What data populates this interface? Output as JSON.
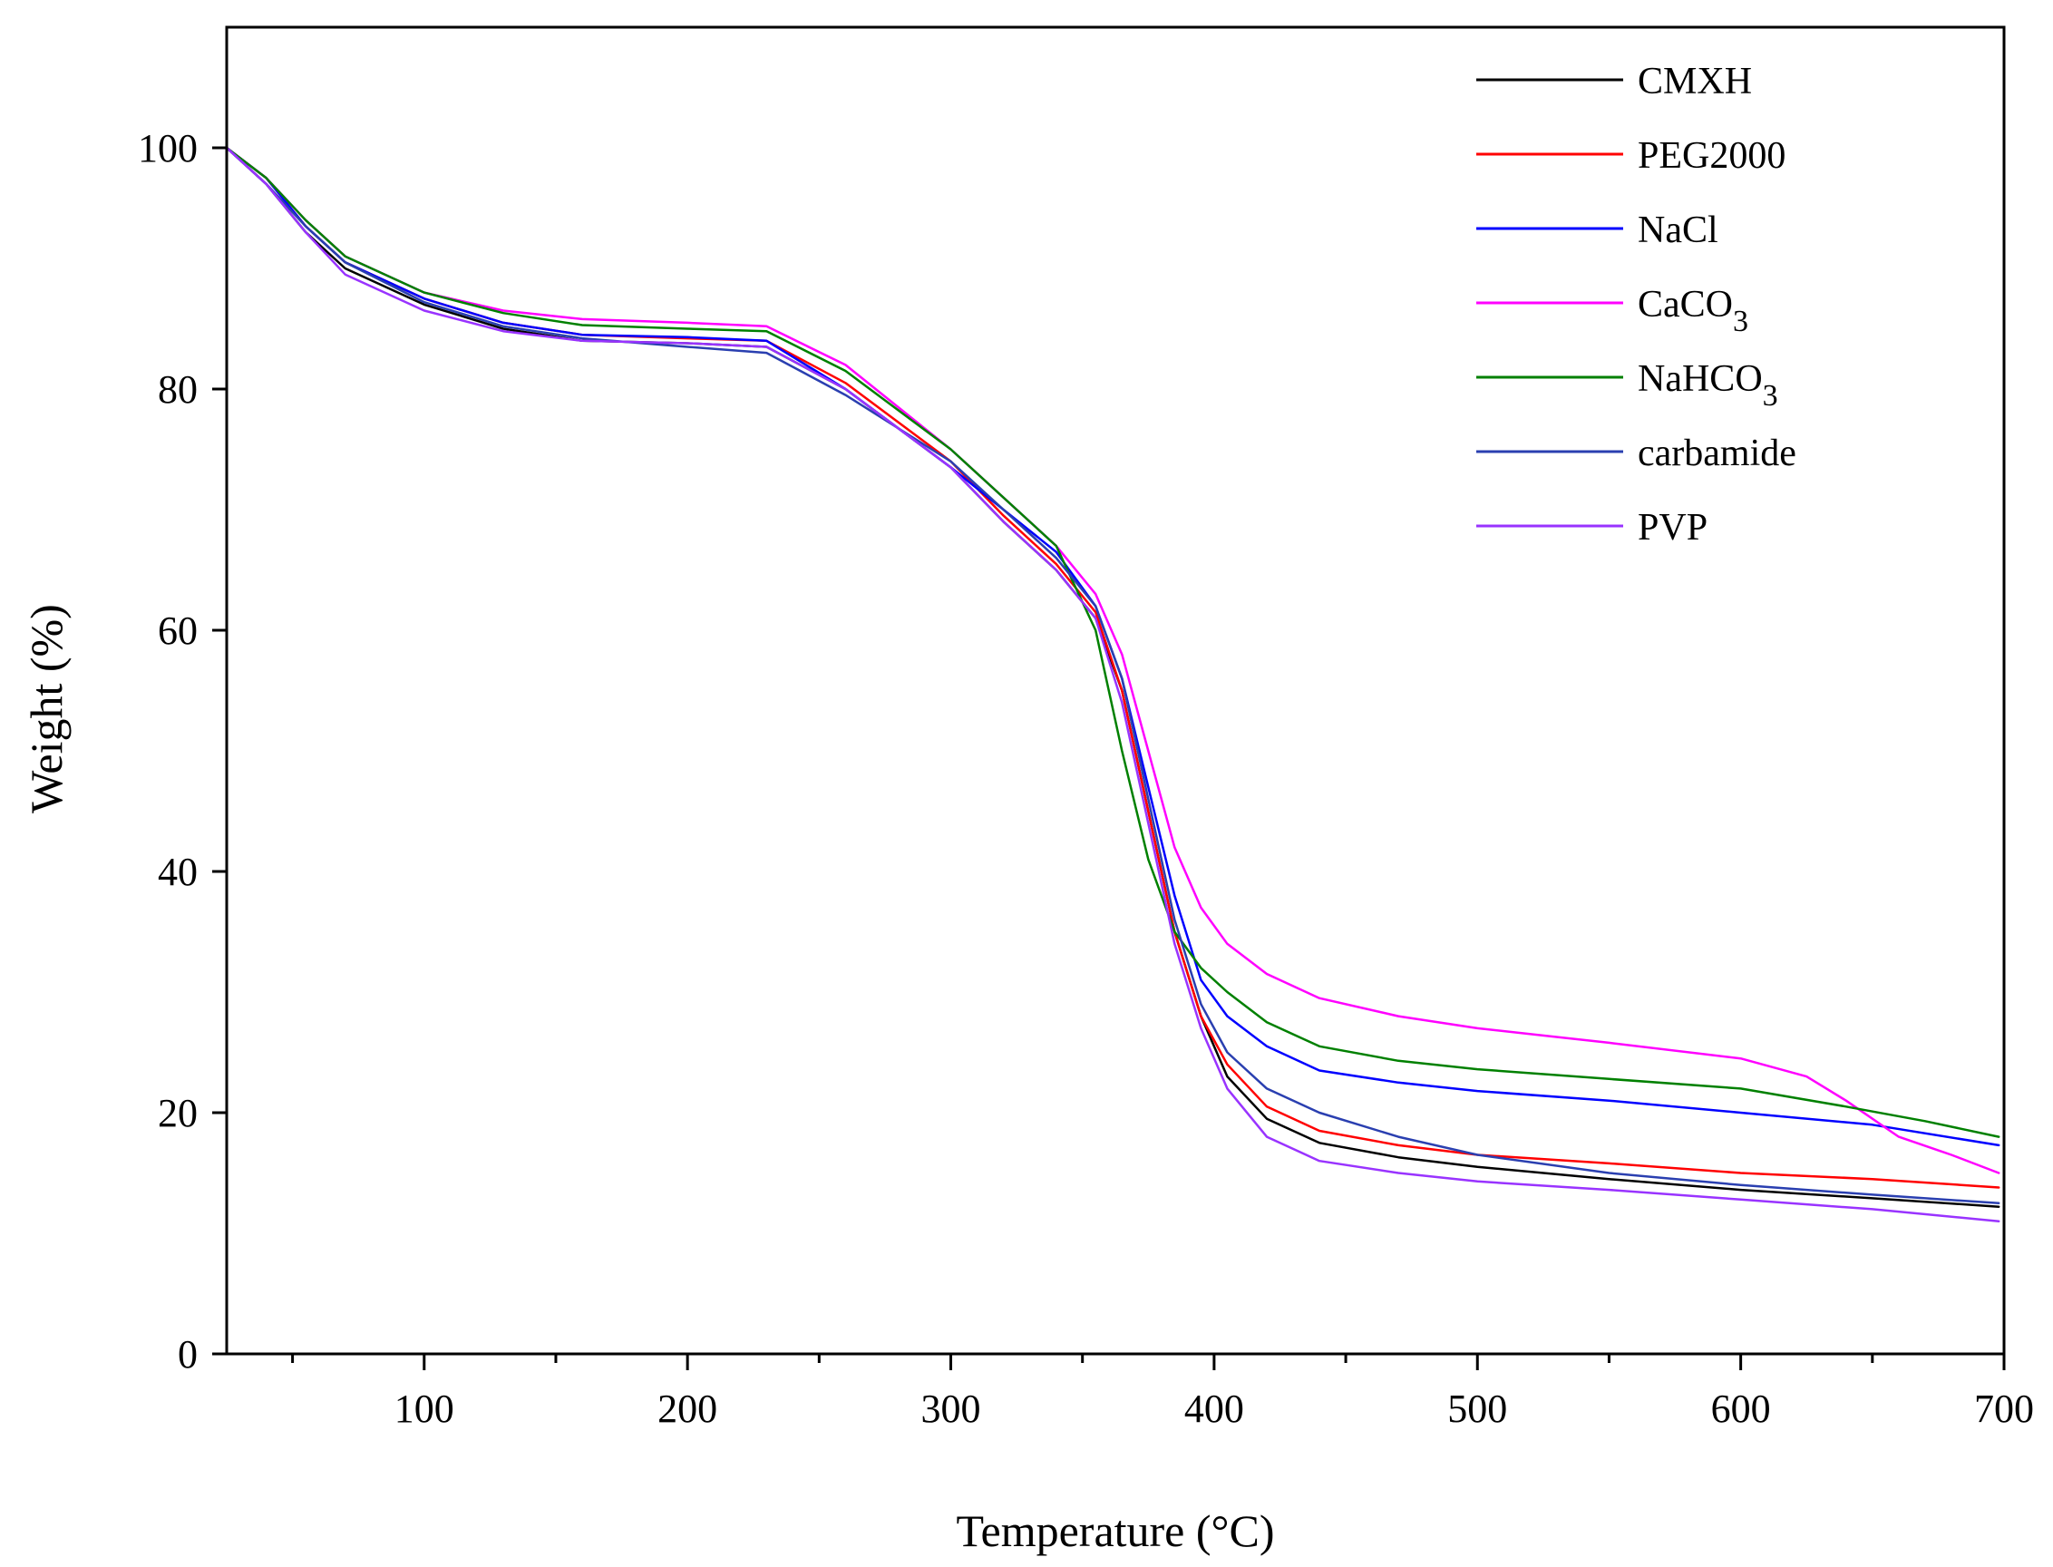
{
  "chart_data": {
    "type": "line",
    "title": "",
    "xlabel": "Temperature (°C)",
    "ylabel": "Weight (%)",
    "xlim": [
      25,
      700
    ],
    "ylim": [
      0,
      110
    ],
    "x_ticks": [
      100,
      200,
      300,
      400,
      500,
      600,
      700
    ],
    "x_minor_ticks": [
      50,
      150,
      250,
      350,
      450,
      550,
      650
    ],
    "y_ticks": [
      0,
      20,
      40,
      60,
      80,
      100
    ],
    "legend_position": "top-right",
    "grid": false,
    "series": [
      {
        "name": "CMXH",
        "name_main": "CMXH",
        "name_sub": "",
        "color": "#000000",
        "points": [
          [
            25,
            100
          ],
          [
            40,
            97
          ],
          [
            55,
            93
          ],
          [
            70,
            90
          ],
          [
            100,
            87
          ],
          [
            130,
            85
          ],
          [
            160,
            84
          ],
          [
            200,
            83.8
          ],
          [
            230,
            83.5
          ],
          [
            260,
            80
          ],
          [
            300,
            73.5
          ],
          [
            320,
            69
          ],
          [
            340,
            65
          ],
          [
            355,
            61
          ],
          [
            365,
            55
          ],
          [
            375,
            45
          ],
          [
            385,
            35
          ],
          [
            395,
            28
          ],
          [
            405,
            23
          ],
          [
            420,
            19.5
          ],
          [
            440,
            17.5
          ],
          [
            470,
            16.3
          ],
          [
            500,
            15.5
          ],
          [
            550,
            14.5
          ],
          [
            600,
            13.6
          ],
          [
            650,
            12.9
          ],
          [
            698,
            12.2
          ]
        ]
      },
      {
        "name": "PEG2000",
        "name_main": "PEG2000",
        "name_sub": "",
        "color": "#ff0000",
        "points": [
          [
            25,
            100
          ],
          [
            40,
            97.5
          ],
          [
            55,
            93.5
          ],
          [
            70,
            90.5
          ],
          [
            100,
            87.5
          ],
          [
            130,
            85.5
          ],
          [
            160,
            84.5
          ],
          [
            200,
            84.2
          ],
          [
            230,
            84
          ],
          [
            260,
            80.5
          ],
          [
            300,
            74
          ],
          [
            320,
            69.5
          ],
          [
            340,
            65.5
          ],
          [
            355,
            61.5
          ],
          [
            365,
            55
          ],
          [
            375,
            45
          ],
          [
            385,
            35
          ],
          [
            395,
            28
          ],
          [
            405,
            24
          ],
          [
            420,
            20.5
          ],
          [
            440,
            18.5
          ],
          [
            470,
            17.3
          ],
          [
            500,
            16.5
          ],
          [
            550,
            15.8
          ],
          [
            600,
            15
          ],
          [
            650,
            14.5
          ],
          [
            698,
            13.8
          ]
        ]
      },
      {
        "name": "NaCl",
        "name_main": "NaCl",
        "name_sub": "",
        "color": "#0000ff",
        "points": [
          [
            25,
            100
          ],
          [
            40,
            97.5
          ],
          [
            55,
            93.5
          ],
          [
            70,
            90.5
          ],
          [
            100,
            87.5
          ],
          [
            130,
            85.5
          ],
          [
            160,
            84.5
          ],
          [
            200,
            84.3
          ],
          [
            230,
            84
          ],
          [
            260,
            80
          ],
          [
            300,
            73.5
          ],
          [
            320,
            70
          ],
          [
            340,
            66.5
          ],
          [
            355,
            62
          ],
          [
            365,
            56
          ],
          [
            375,
            47
          ],
          [
            385,
            38
          ],
          [
            395,
            31
          ],
          [
            405,
            28
          ],
          [
            420,
            25.5
          ],
          [
            440,
            23.5
          ],
          [
            470,
            22.5
          ],
          [
            500,
            21.8
          ],
          [
            550,
            21
          ],
          [
            600,
            20
          ],
          [
            650,
            19
          ],
          [
            698,
            17.3
          ]
        ]
      },
      {
        "name": "CaCO3",
        "name_main": "CaCO",
        "name_sub": "3",
        "color": "#ff00ff",
        "points": [
          [
            25,
            100
          ],
          [
            40,
            97.5
          ],
          [
            55,
            94
          ],
          [
            70,
            91
          ],
          [
            100,
            88
          ],
          [
            130,
            86.5
          ],
          [
            160,
            85.8
          ],
          [
            200,
            85.5
          ],
          [
            230,
            85.2
          ],
          [
            260,
            82
          ],
          [
            300,
            75
          ],
          [
            320,
            71
          ],
          [
            340,
            67
          ],
          [
            355,
            63
          ],
          [
            365,
            58
          ],
          [
            375,
            50
          ],
          [
            385,
            42
          ],
          [
            395,
            37
          ],
          [
            405,
            34
          ],
          [
            420,
            31.5
          ],
          [
            440,
            29.5
          ],
          [
            470,
            28
          ],
          [
            500,
            27
          ],
          [
            550,
            25.8
          ],
          [
            600,
            24.5
          ],
          [
            625,
            23
          ],
          [
            640,
            21
          ],
          [
            660,
            18
          ],
          [
            680,
            16.5
          ],
          [
            698,
            15
          ]
        ]
      },
      {
        "name": "NaHCO3",
        "name_main": "NaHCO",
        "name_sub": "3",
        "color": "#008000",
        "points": [
          [
            25,
            100
          ],
          [
            40,
            97.5
          ],
          [
            55,
            94
          ],
          [
            70,
            91
          ],
          [
            100,
            88
          ],
          [
            130,
            86.3
          ],
          [
            160,
            85.3
          ],
          [
            200,
            85
          ],
          [
            230,
            84.8
          ],
          [
            260,
            81.5
          ],
          [
            300,
            75
          ],
          [
            320,
            71
          ],
          [
            340,
            67
          ],
          [
            355,
            60
          ],
          [
            365,
            50
          ],
          [
            375,
            41
          ],
          [
            385,
            35
          ],
          [
            395,
            32
          ],
          [
            405,
            30
          ],
          [
            420,
            27.5
          ],
          [
            440,
            25.5
          ],
          [
            470,
            24.3
          ],
          [
            500,
            23.6
          ],
          [
            550,
            22.8
          ],
          [
            600,
            22
          ],
          [
            640,
            20.5
          ],
          [
            670,
            19.3
          ],
          [
            698,
            18
          ]
        ]
      },
      {
        "name": "carbamide",
        "name_main": "carbamide",
        "name_sub": "",
        "color": "#2a3fb0",
        "points": [
          [
            25,
            100
          ],
          [
            40,
            97
          ],
          [
            55,
            93.5
          ],
          [
            70,
            90.5
          ],
          [
            100,
            87.2
          ],
          [
            130,
            85.2
          ],
          [
            160,
            84.2
          ],
          [
            200,
            83.5
          ],
          [
            230,
            83
          ],
          [
            260,
            79.5
          ],
          [
            300,
            74
          ],
          [
            320,
            70
          ],
          [
            340,
            66
          ],
          [
            355,
            62
          ],
          [
            365,
            56
          ],
          [
            375,
            46
          ],
          [
            385,
            36
          ],
          [
            395,
            29
          ],
          [
            405,
            25
          ],
          [
            420,
            22
          ],
          [
            440,
            20
          ],
          [
            470,
            18
          ],
          [
            500,
            16.5
          ],
          [
            550,
            15
          ],
          [
            600,
            14
          ],
          [
            650,
            13.2
          ],
          [
            698,
            12.5
          ]
        ]
      },
      {
        "name": "PVP",
        "name_main": "PVP",
        "name_sub": "",
        "color": "#9933ff",
        "points": [
          [
            25,
            100
          ],
          [
            40,
            97
          ],
          [
            55,
            93
          ],
          [
            70,
            89.5
          ],
          [
            100,
            86.5
          ],
          [
            130,
            84.8
          ],
          [
            160,
            84
          ],
          [
            200,
            83.8
          ],
          [
            230,
            83.5
          ],
          [
            260,
            80
          ],
          [
            300,
            73.5
          ],
          [
            320,
            69
          ],
          [
            340,
            65
          ],
          [
            355,
            61
          ],
          [
            365,
            54
          ],
          [
            375,
            44
          ],
          [
            385,
            34
          ],
          [
            395,
            27
          ],
          [
            405,
            22
          ],
          [
            420,
            18
          ],
          [
            440,
            16
          ],
          [
            470,
            15
          ],
          [
            500,
            14.3
          ],
          [
            550,
            13.6
          ],
          [
            600,
            12.8
          ],
          [
            650,
            12
          ],
          [
            698,
            11
          ]
        ]
      }
    ]
  }
}
